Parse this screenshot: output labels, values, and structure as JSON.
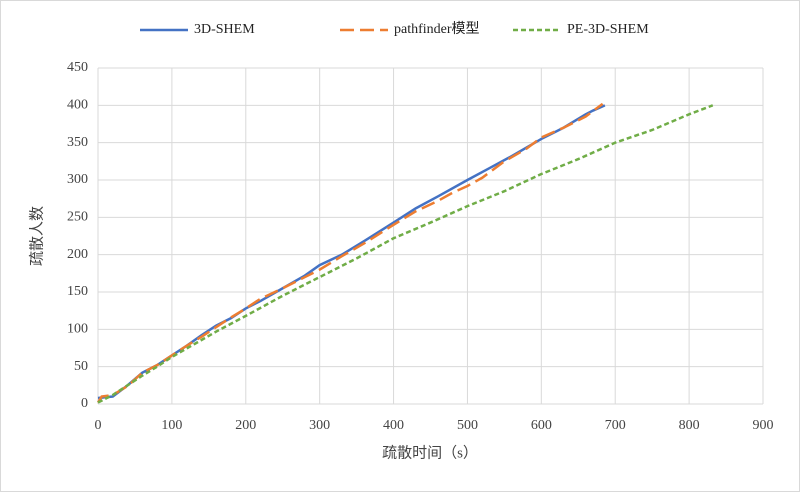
{
  "chart_data": {
    "type": "line",
    "x_label": "疏散时间（s）",
    "y_label": "疏散人数",
    "xlim": [
      0,
      900
    ],
    "xticks": [
      0,
      100,
      200,
      300,
      400,
      500,
      600,
      700,
      800,
      900
    ],
    "ylim": [
      0,
      450
    ],
    "yticks": [
      0,
      50,
      100,
      150,
      200,
      250,
      300,
      350,
      400,
      450
    ],
    "grid": true,
    "legend": "top",
    "series": [
      {
        "name": "3D-SHEM",
        "color": "#4472c4",
        "line_style": "solid",
        "x": [
          0,
          20,
          40,
          60,
          80,
          100,
          120,
          140,
          160,
          180,
          200,
          220,
          250,
          280,
          300,
          330,
          360,
          400,
          430,
          460,
          500,
          530,
          560,
          600,
          630,
          660,
          670,
          686
        ],
        "values": [
          8,
          10,
          25,
          42,
          52,
          65,
          78,
          92,
          105,
          115,
          128,
          138,
          155,
          172,
          186,
          200,
          218,
          243,
          262,
          278,
          300,
          316,
          332,
          355,
          370,
          388,
          393,
          400
        ]
      },
      {
        "name": "pathfinder模型",
        "color": "#ed7d31",
        "line_style": "dashed",
        "x": [
          0,
          5,
          20,
          40,
          60,
          80,
          100,
          120,
          140,
          160,
          180,
          200,
          220,
          250,
          280,
          300,
          330,
          360,
          400,
          430,
          460,
          480,
          500,
          520,
          550,
          580,
          600,
          630,
          660,
          683
        ],
        "values": [
          2,
          10,
          12,
          24,
          42,
          52,
          65,
          78,
          90,
          103,
          116,
          128,
          141,
          155,
          170,
          180,
          198,
          215,
          240,
          258,
          272,
          283,
          292,
          303,
          325,
          342,
          357,
          370,
          385,
          402
        ]
      },
      {
        "name": "PE-3D-SHEM",
        "color": "#70ad47",
        "line_style": "dotted",
        "x": [
          0,
          20,
          40,
          60,
          80,
          100,
          130,
          160,
          200,
          250,
          300,
          350,
          400,
          450,
          500,
          550,
          600,
          650,
          700,
          750,
          800,
          832
        ],
        "values": [
          2,
          12,
          25,
          38,
          50,
          63,
          80,
          97,
          118,
          145,
          170,
          195,
          222,
          243,
          265,
          285,
          308,
          328,
          350,
          367,
          388,
          400
        ]
      }
    ]
  }
}
